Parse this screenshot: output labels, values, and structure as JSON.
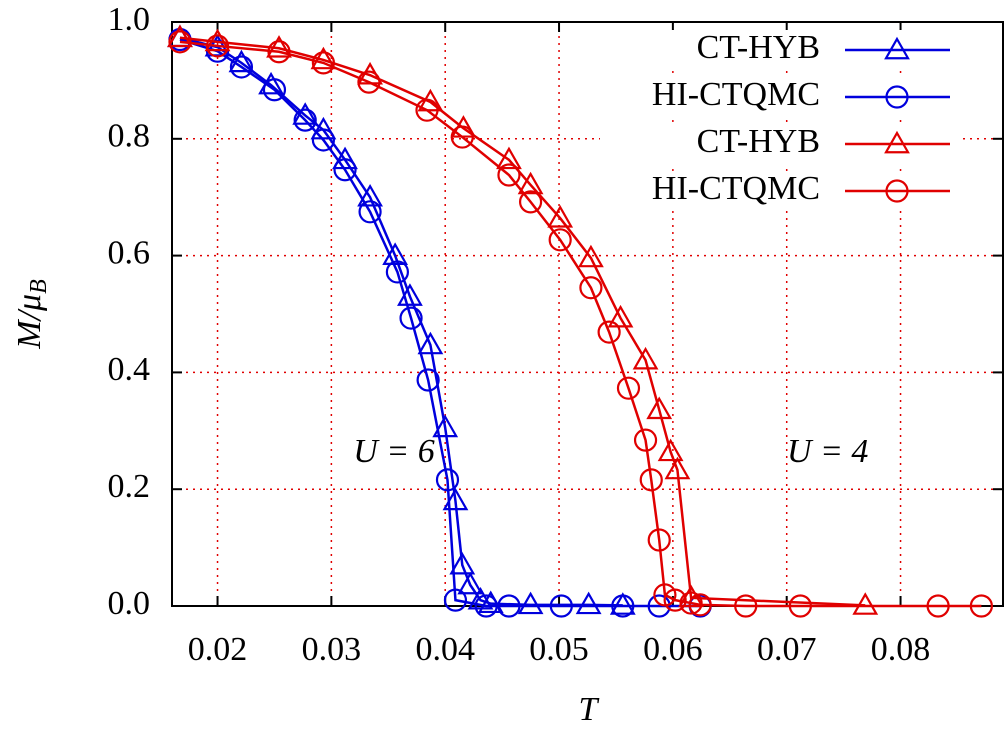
{
  "chart_data": {
    "type": "line",
    "xlabel": "T",
    "ylabel": {
      "main": "M/μ",
      "sub": "B"
    },
    "xlim": [
      0.016,
      0.089
    ],
    "ylim": [
      0,
      1
    ],
    "xticks": [
      0.02,
      0.03,
      0.04,
      0.05,
      0.06,
      0.07,
      0.08
    ],
    "yticks": [
      {
        "value": 0,
        "label": "0.0"
      },
      0.2,
      0.4,
      0.6,
      0.8,
      {
        "value": 1,
        "label": "1.0"
      }
    ],
    "grid": true,
    "legend": "upper right",
    "annotations": [
      {
        "text": "U = 6",
        "x": 0.0355,
        "y": 0.26,
        "color": "#0000dd"
      },
      {
        "text": "U = 4",
        "x": 0.0736,
        "y": 0.26,
        "color": "#e00000"
      }
    ],
    "series": [
      {
        "name": "CT-HYB",
        "color": "#0000dd",
        "marker": "triangle",
        "x": [
          0.0167,
          0.02,
          0.0221,
          0.0247,
          0.0277,
          0.0293,
          0.0312,
          0.0334,
          0.0356,
          0.0369,
          0.0387,
          0.04,
          0.0409,
          0.0415,
          0.0422,
          0.0431,
          0.044,
          0.0475,
          0.0526,
          0.0556
        ],
        "values": [
          0.973,
          0.957,
          0.93,
          0.892,
          0.84,
          0.815,
          0.764,
          0.7,
          0.6,
          0.53,
          0.447,
          0.305,
          0.18,
          0.07,
          0.036,
          0.01,
          0.004,
          0.002,
          0.002,
          0.001
        ]
      },
      {
        "name": "HI-CTQMC",
        "color": "#0000dd",
        "marker": "circle",
        "x": [
          0.0167,
          0.02,
          0.0221,
          0.025,
          0.0277,
          0.0293,
          0.0312,
          0.0334,
          0.0358,
          0.037,
          0.0385,
          0.0402,
          0.0409,
          0.0436,
          0.0456,
          0.0502,
          0.0556,
          0.0588,
          0.0624
        ],
        "values": [
          0.97,
          0.95,
          0.923,
          0.884,
          0.832,
          0.798,
          0.747,
          0.675,
          0.572,
          0.493,
          0.387,
          0.216,
          0.01,
          0,
          0,
          0,
          0,
          0,
          0
        ]
      },
      {
        "name": "CT-HYB",
        "color": "#e00000",
        "marker": "triangle",
        "x": [
          0.0167,
          0.02,
          0.0254,
          0.0293,
          0.0334,
          0.0387,
          0.0416,
          0.0456,
          0.0475,
          0.0501,
          0.0528,
          0.0554,
          0.0576,
          0.0588,
          0.0598,
          0.0604,
          0.0616,
          0.0769
        ],
        "values": [
          0.973,
          0.966,
          0.955,
          0.935,
          0.909,
          0.863,
          0.818,
          0.764,
          0.721,
          0.664,
          0.596,
          0.493,
          0.421,
          0.336,
          0.264,
          0.233,
          0.014,
          0.001
        ]
      },
      {
        "name": "HI-CTQMC",
        "color": "#e00000",
        "marker": "circle",
        "x": [
          0.0167,
          0.02,
          0.0254,
          0.0293,
          0.0333,
          0.0384,
          0.0415,
          0.0456,
          0.0475,
          0.0501,
          0.0528,
          0.0544,
          0.0561,
          0.0576,
          0.0581,
          0.0588,
          0.0593,
          0.0602,
          0.0616,
          0.0624,
          0.0664,
          0.0712,
          0.0833,
          0.0871
        ],
        "values": [
          0.966,
          0.959,
          0.949,
          0.93,
          0.897,
          0.849,
          0.803,
          0.738,
          0.692,
          0.627,
          0.545,
          0.469,
          0.373,
          0.284,
          0.216,
          0.113,
          0.019,
          0.01,
          0.005,
          0.002,
          0,
          0,
          0,
          0
        ]
      }
    ]
  }
}
